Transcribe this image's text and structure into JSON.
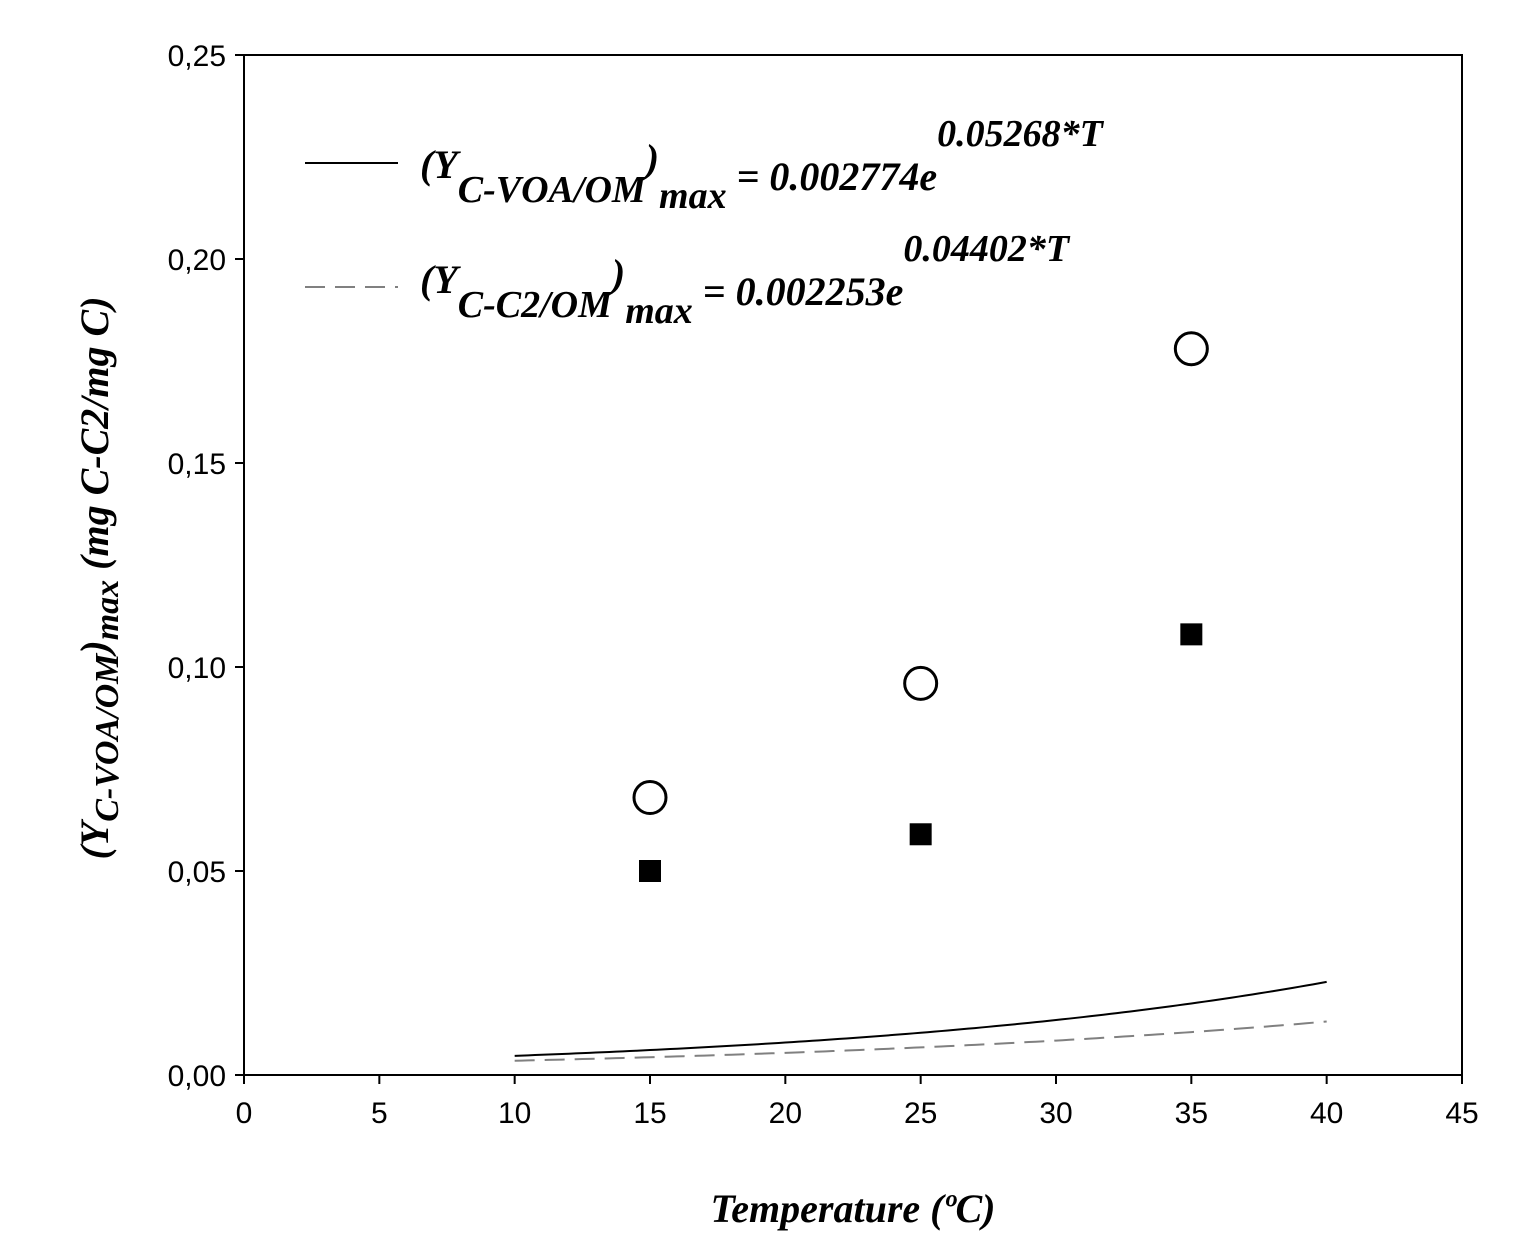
{
  "chart_data": {
    "type": "scatter",
    "title": "",
    "xlabel": "Temperature (ºC)",
    "ylabel": {
      "prefix": "(Y",
      "sub": "C-VOA/OM",
      "mid": ")",
      "sub2": "max",
      "suffix": " (mg C-C2/mg C)"
    },
    "xlim": [
      0,
      45
    ],
    "ylim": [
      0,
      0.25
    ],
    "x_ticks": [
      0,
      5,
      10,
      15,
      20,
      25,
      30,
      35,
      40,
      45
    ],
    "x_tick_labels": [
      "0",
      "5",
      "10",
      "15",
      "20",
      "25",
      "30",
      "35",
      "40",
      "45"
    ],
    "y_ticks": [
      0,
      0.05,
      0.1,
      0.15,
      0.2,
      0.25
    ],
    "y_tick_labels": [
      "0,00",
      "0,05",
      "0,10",
      "0,15",
      "0,20",
      "0,25"
    ],
    "grid": false,
    "legend_position": "top-left",
    "series": [
      {
        "marker": "open-circle",
        "color": "#000000",
        "x": [
          15,
          25,
          35
        ],
        "y": [
          0.068,
          0.096,
          0.178
        ],
        "fit": {
          "type": "exponential",
          "a": 0.002774,
          "b": 0.05268,
          "x_range": [
            10,
            40
          ],
          "line": "solid",
          "color": "#000000"
        },
        "legend": {
          "prefix": "(Y",
          "sub": "C-VOA/OM",
          "close": ")",
          "sub2": "max",
          "equation": " = 0.002774e",
          "exponent": "0.05268*T"
        }
      },
      {
        "marker": "filled-square",
        "color": "#000000",
        "x": [
          15,
          25,
          35
        ],
        "y": [
          0.05,
          0.059,
          0.108
        ],
        "fit": {
          "type": "exponential",
          "a": 0.002253,
          "b": 0.04402,
          "x_range": [
            10,
            40
          ],
          "line": "dashed",
          "color": "#808080"
        },
        "legend": {
          "prefix": "(Y",
          "sub": "C-C2/OM",
          "close": ")",
          "sub2": "max",
          "equation": " = 0.002253e",
          "exponent": "0.04402*T"
        }
      }
    ]
  }
}
